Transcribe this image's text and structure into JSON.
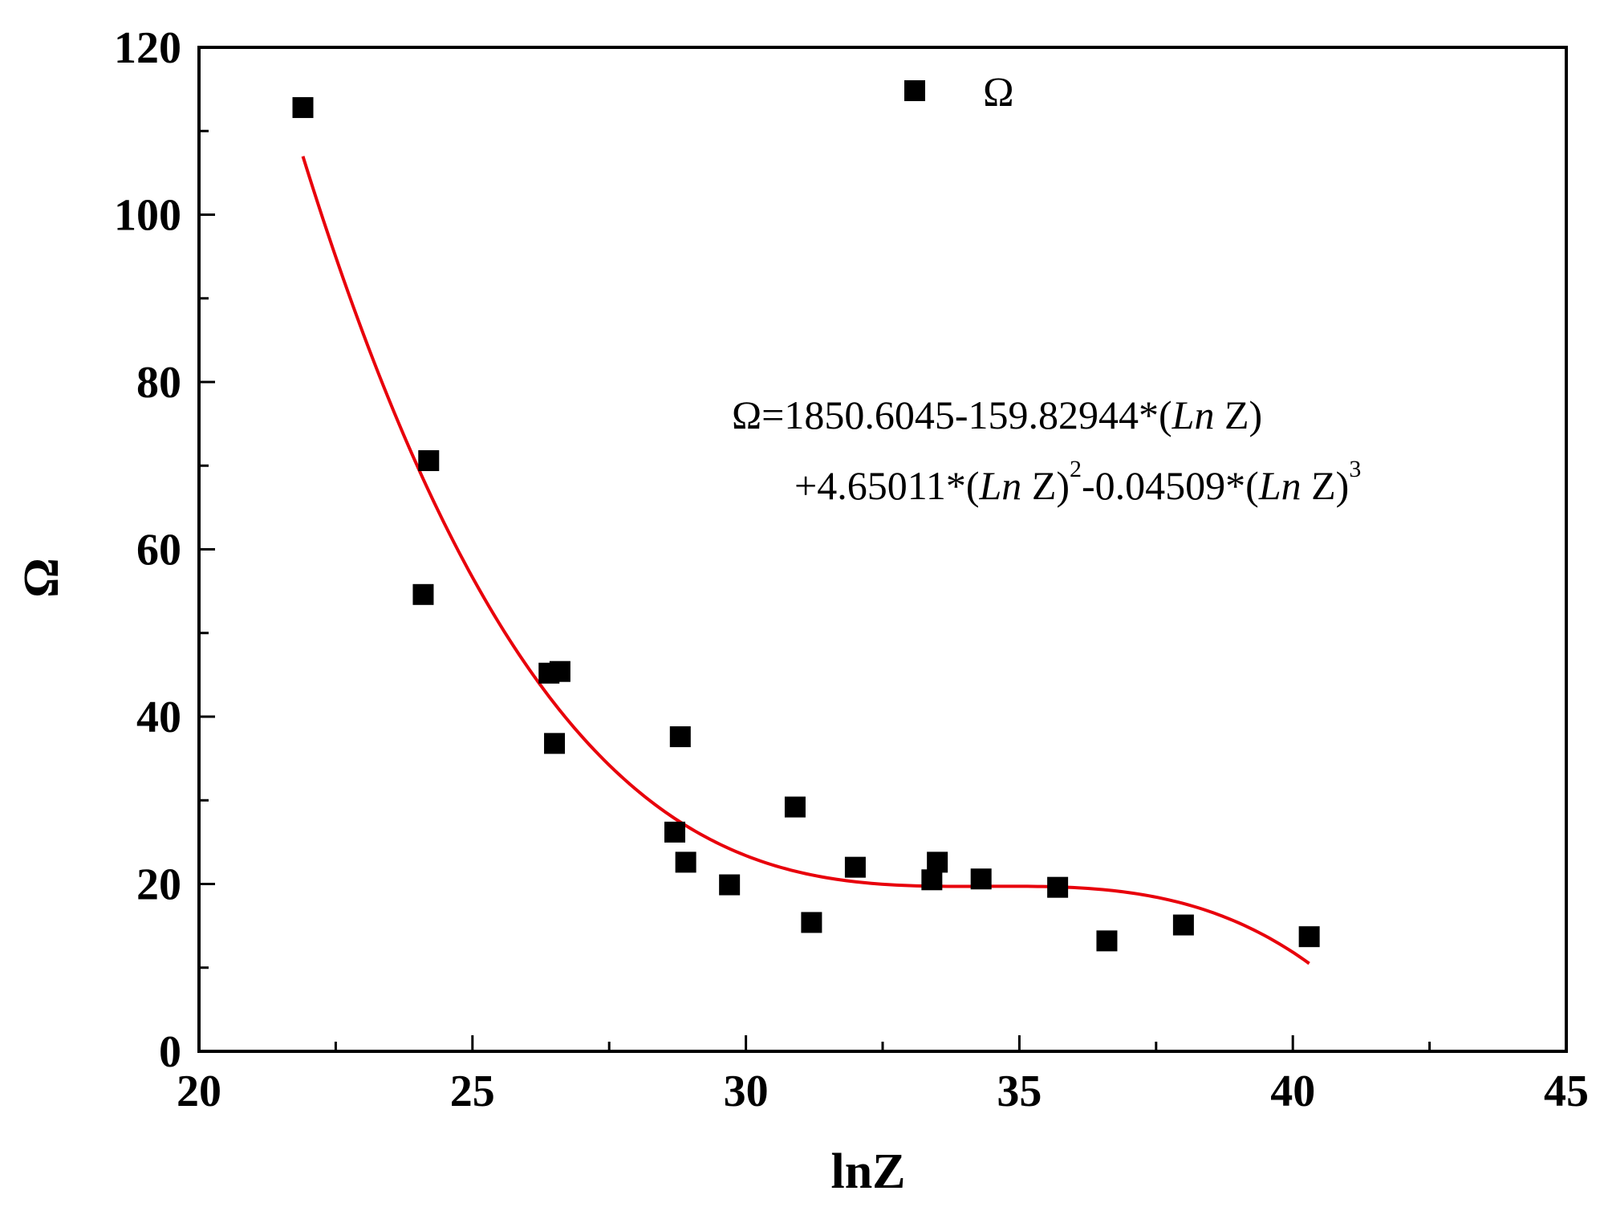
{
  "chart_data": {
    "type": "scatter",
    "title": "",
    "xlabel": "lnZ",
    "ylabel": "Ω",
    "xlim": [
      20,
      45
    ],
    "ylim": [
      0,
      120
    ],
    "x_ticks": [
      20,
      25,
      30,
      35,
      40,
      45
    ],
    "x_tick_labels": [
      "20",
      "25",
      "30",
      "35",
      "40",
      "45"
    ],
    "y_ticks": [
      0,
      20,
      40,
      60,
      80,
      100,
      120
    ],
    "y_tick_labels": [
      "0",
      "20",
      "40",
      "60",
      "80",
      "100",
      "120"
    ],
    "x_minor_step": 2.5,
    "y_minor_step": 10,
    "grid": false,
    "legend": {
      "position": "top-center",
      "entries": [
        {
          "label": "Ω",
          "marker": "square",
          "color": "#000000"
        }
      ]
    },
    "series": [
      {
        "name": "Ω",
        "marker": "square",
        "color": "#000000",
        "points": [
          {
            "x": 21.9,
            "y": 112.8
          },
          {
            "x": 24.2,
            "y": 70.6
          },
          {
            "x": 24.1,
            "y": 54.6
          },
          {
            "x": 26.4,
            "y": 45.2
          },
          {
            "x": 26.6,
            "y": 45.4
          },
          {
            "x": 26.5,
            "y": 36.8
          },
          {
            "x": 28.8,
            "y": 37.6
          },
          {
            "x": 28.7,
            "y": 26.2
          },
          {
            "x": 28.9,
            "y": 22.6
          },
          {
            "x": 29.7,
            "y": 19.9
          },
          {
            "x": 30.9,
            "y": 29.2
          },
          {
            "x": 31.2,
            "y": 15.4
          },
          {
            "x": 32.0,
            "y": 22.0
          },
          {
            "x": 33.4,
            "y": 20.5
          },
          {
            "x": 33.5,
            "y": 22.6
          },
          {
            "x": 34.3,
            "y": 20.6
          },
          {
            "x": 35.7,
            "y": 19.6
          },
          {
            "x": 36.6,
            "y": 13.2
          },
          {
            "x": 38.0,
            "y": 15.1
          },
          {
            "x": 40.3,
            "y": 13.7
          }
        ]
      }
    ],
    "fit": {
      "name": "cubic fit",
      "color": "#e8000b",
      "x_range": [
        21.9,
        40.3
      ],
      "coefficients": [
        1850.6045,
        -159.82944,
        4.65011,
        -0.04509
      ]
    },
    "annotation": {
      "line1": {
        "prefix": "Ω=1850.6045-159.82944*(",
        "italic": "Ln",
        "suffix": " Z)"
      },
      "line2": {
        "part1": "+4.65011*(",
        "italic1": "Ln",
        "part2": " Z)",
        "sup1": "2",
        "part3": "-0.04509*(",
        "italic2": "Ln",
        "part4": " Z)",
        "sup2": "3"
      }
    }
  }
}
